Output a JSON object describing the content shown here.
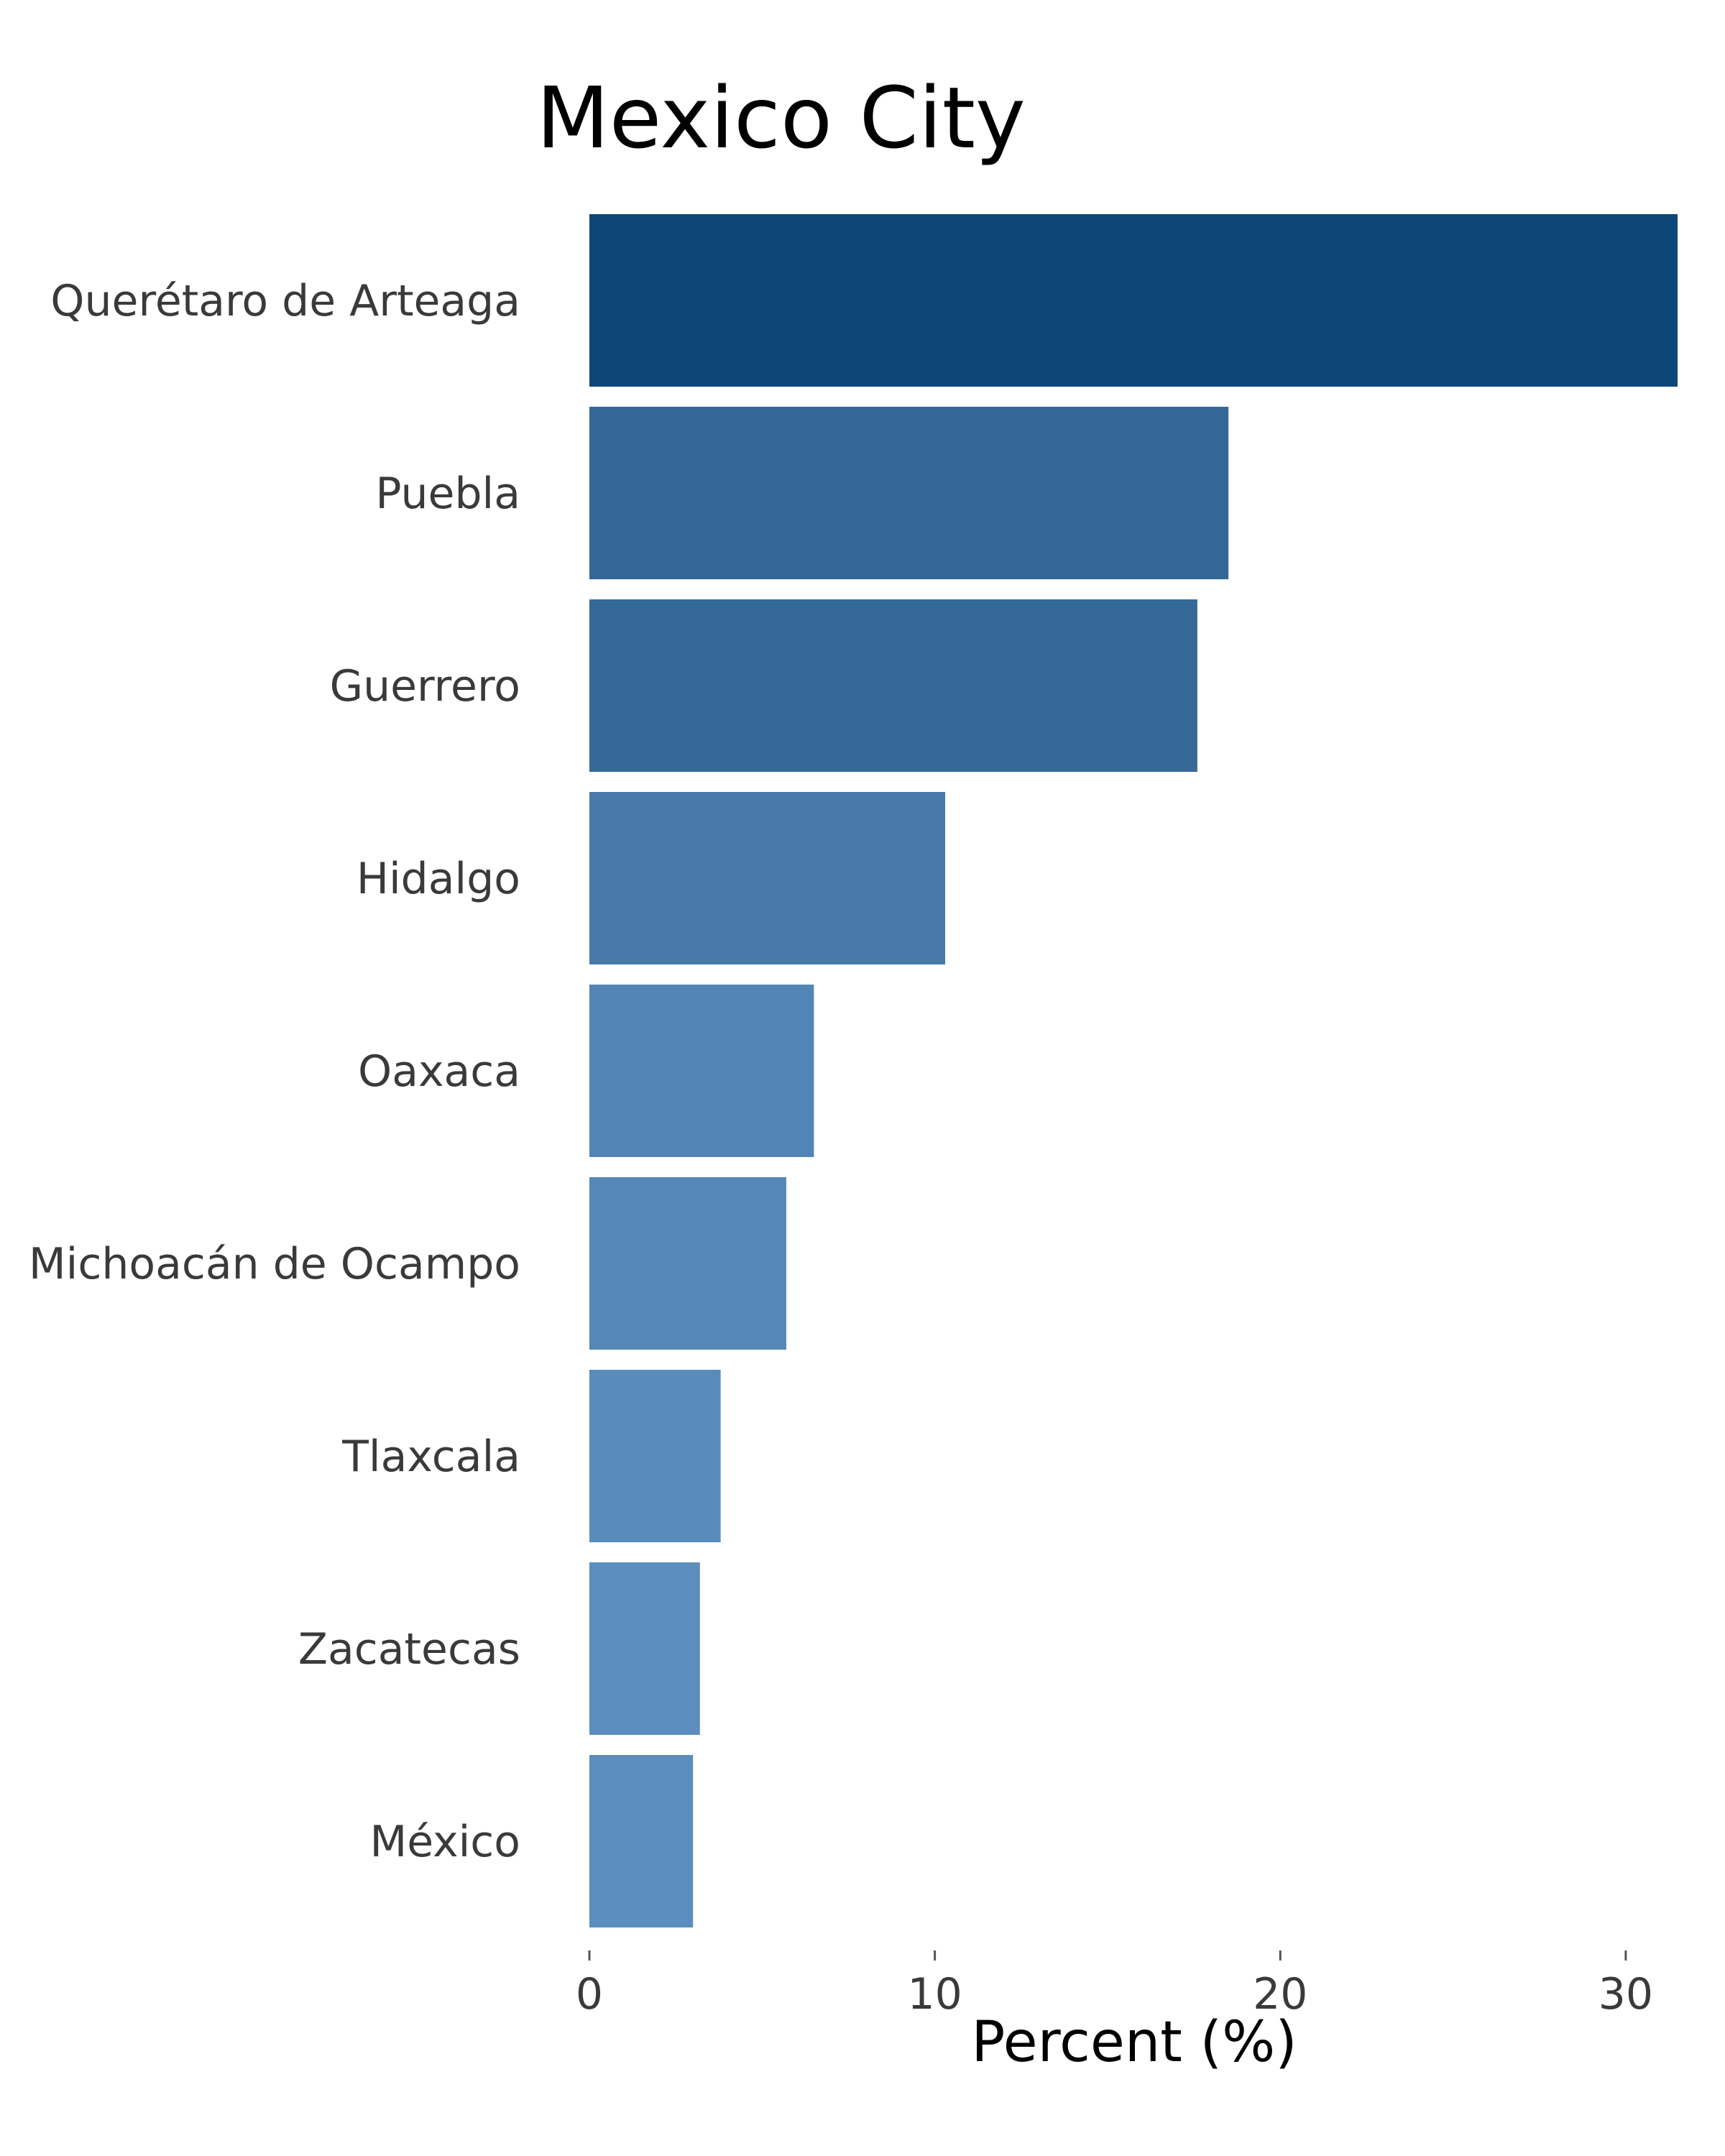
{
  "chart_data": {
    "type": "bar",
    "orientation": "horizontal",
    "title": "Mexico City",
    "xlabel": "Percent (%)",
    "ylabel": "",
    "categories": [
      "Querétaro de Arteaga",
      "Puebla",
      "Guerrero",
      "Hidalgo",
      "Oaxaca",
      "Michoacán de Ocampo",
      "Tlaxcala",
      "Zacatecas",
      "México"
    ],
    "values": [
      31.5,
      18.5,
      17.6,
      10.3,
      6.5,
      5.7,
      3.8,
      3.2,
      3.0
    ],
    "colors": [
      "#0c4778",
      "#336797",
      "#356997",
      "#4879a9",
      "#5285b5",
      "#5588b7",
      "#598cbb",
      "#5b8ebd",
      "#5b8ebd"
    ],
    "xlim": [
      0,
      31.5
    ],
    "xticks": [
      "0",
      "10",
      "20",
      "30"
    ],
    "grid": false,
    "legend": "none"
  }
}
